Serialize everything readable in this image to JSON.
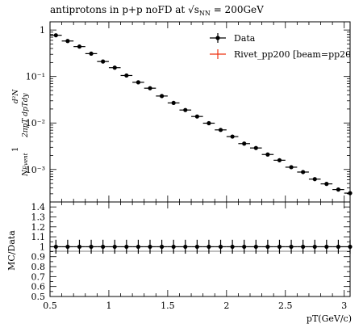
{
  "chart_data": {
    "type": "scatter",
    "title_prefix": "antiprotons in p+p noFD at ",
    "title_sqrt": "√s",
    "title_sub": "NN",
    "title_suffix": " = 200GeV",
    "ylabel_top": "d²N",
    "ylabel_frac_num": "1",
    "ylabel_frac_den": "N",
    "ylabel_frac_den_sub": "Event",
    "ylabel_tail": "2πpT dpTdy",
    "xlabel": "pT(GeV/c)",
    "ratio_ylabel": "MC/Data",
    "legend": [
      {
        "label": "Data",
        "color": "#000000"
      },
      {
        "label": "Rivet_pp200 [beam=pp20",
        "color": "#ee3311"
      }
    ],
    "log_y": true,
    "xlim": [
      0.5,
      3.05
    ],
    "ylim": [
      0.0002,
      1.5
    ],
    "x_ticks": [
      "0.5",
      "1",
      "1.5",
      "2",
      "2.5",
      "3"
    ],
    "y_ticks": [
      "1",
      "10⁻¹",
      "10⁻²",
      "10⁻³"
    ],
    "ratio_ylim": [
      0.5,
      1.45
    ],
    "ratio_ticks": [
      "0.5",
      "0.6",
      "0.7",
      "0.8",
      "0.9",
      "1",
      "1.1",
      "1.2",
      "1.3",
      "1.4"
    ],
    "points": [
      {
        "x": 0.55,
        "y": 0.77
      },
      {
        "x": 0.65,
        "y": 0.58
      },
      {
        "x": 0.75,
        "y": 0.44
      },
      {
        "x": 0.85,
        "y": 0.31
      },
      {
        "x": 0.95,
        "y": 0.21
      },
      {
        "x": 1.05,
        "y": 0.155
      },
      {
        "x": 1.15,
        "y": 0.105
      },
      {
        "x": 1.25,
        "y": 0.075
      },
      {
        "x": 1.35,
        "y": 0.056
      },
      {
        "x": 1.45,
        "y": 0.038
      },
      {
        "x": 1.55,
        "y": 0.027
      },
      {
        "x": 1.65,
        "y": 0.019
      },
      {
        "x": 1.75,
        "y": 0.0138
      },
      {
        "x": 1.85,
        "y": 0.0099
      },
      {
        "x": 1.95,
        "y": 0.0071
      },
      {
        "x": 2.05,
        "y": 0.0051
      },
      {
        "x": 2.15,
        "y": 0.0036
      },
      {
        "x": 2.25,
        "y": 0.0029
      },
      {
        "x": 2.35,
        "y": 0.0021
      },
      {
        "x": 2.45,
        "y": 0.00158
      },
      {
        "x": 2.55,
        "y": 0.00112
      },
      {
        "x": 2.65,
        "y": 0.00088
      },
      {
        "x": 2.75,
        "y": 0.00062
      },
      {
        "x": 2.85,
        "y": 0.00049
      },
      {
        "x": 2.95,
        "y": 0.00037
      },
      {
        "x": 3.05,
        "y": 0.00031
      }
    ],
    "ratio_values": [
      1,
      1,
      1,
      1,
      1,
      1,
      1,
      1,
      1,
      1,
      1,
      1,
      1,
      1,
      1,
      1,
      1,
      1,
      1,
      1,
      1,
      1,
      1,
      1,
      1,
      1
    ],
    "ratio_err": 0.07
  }
}
